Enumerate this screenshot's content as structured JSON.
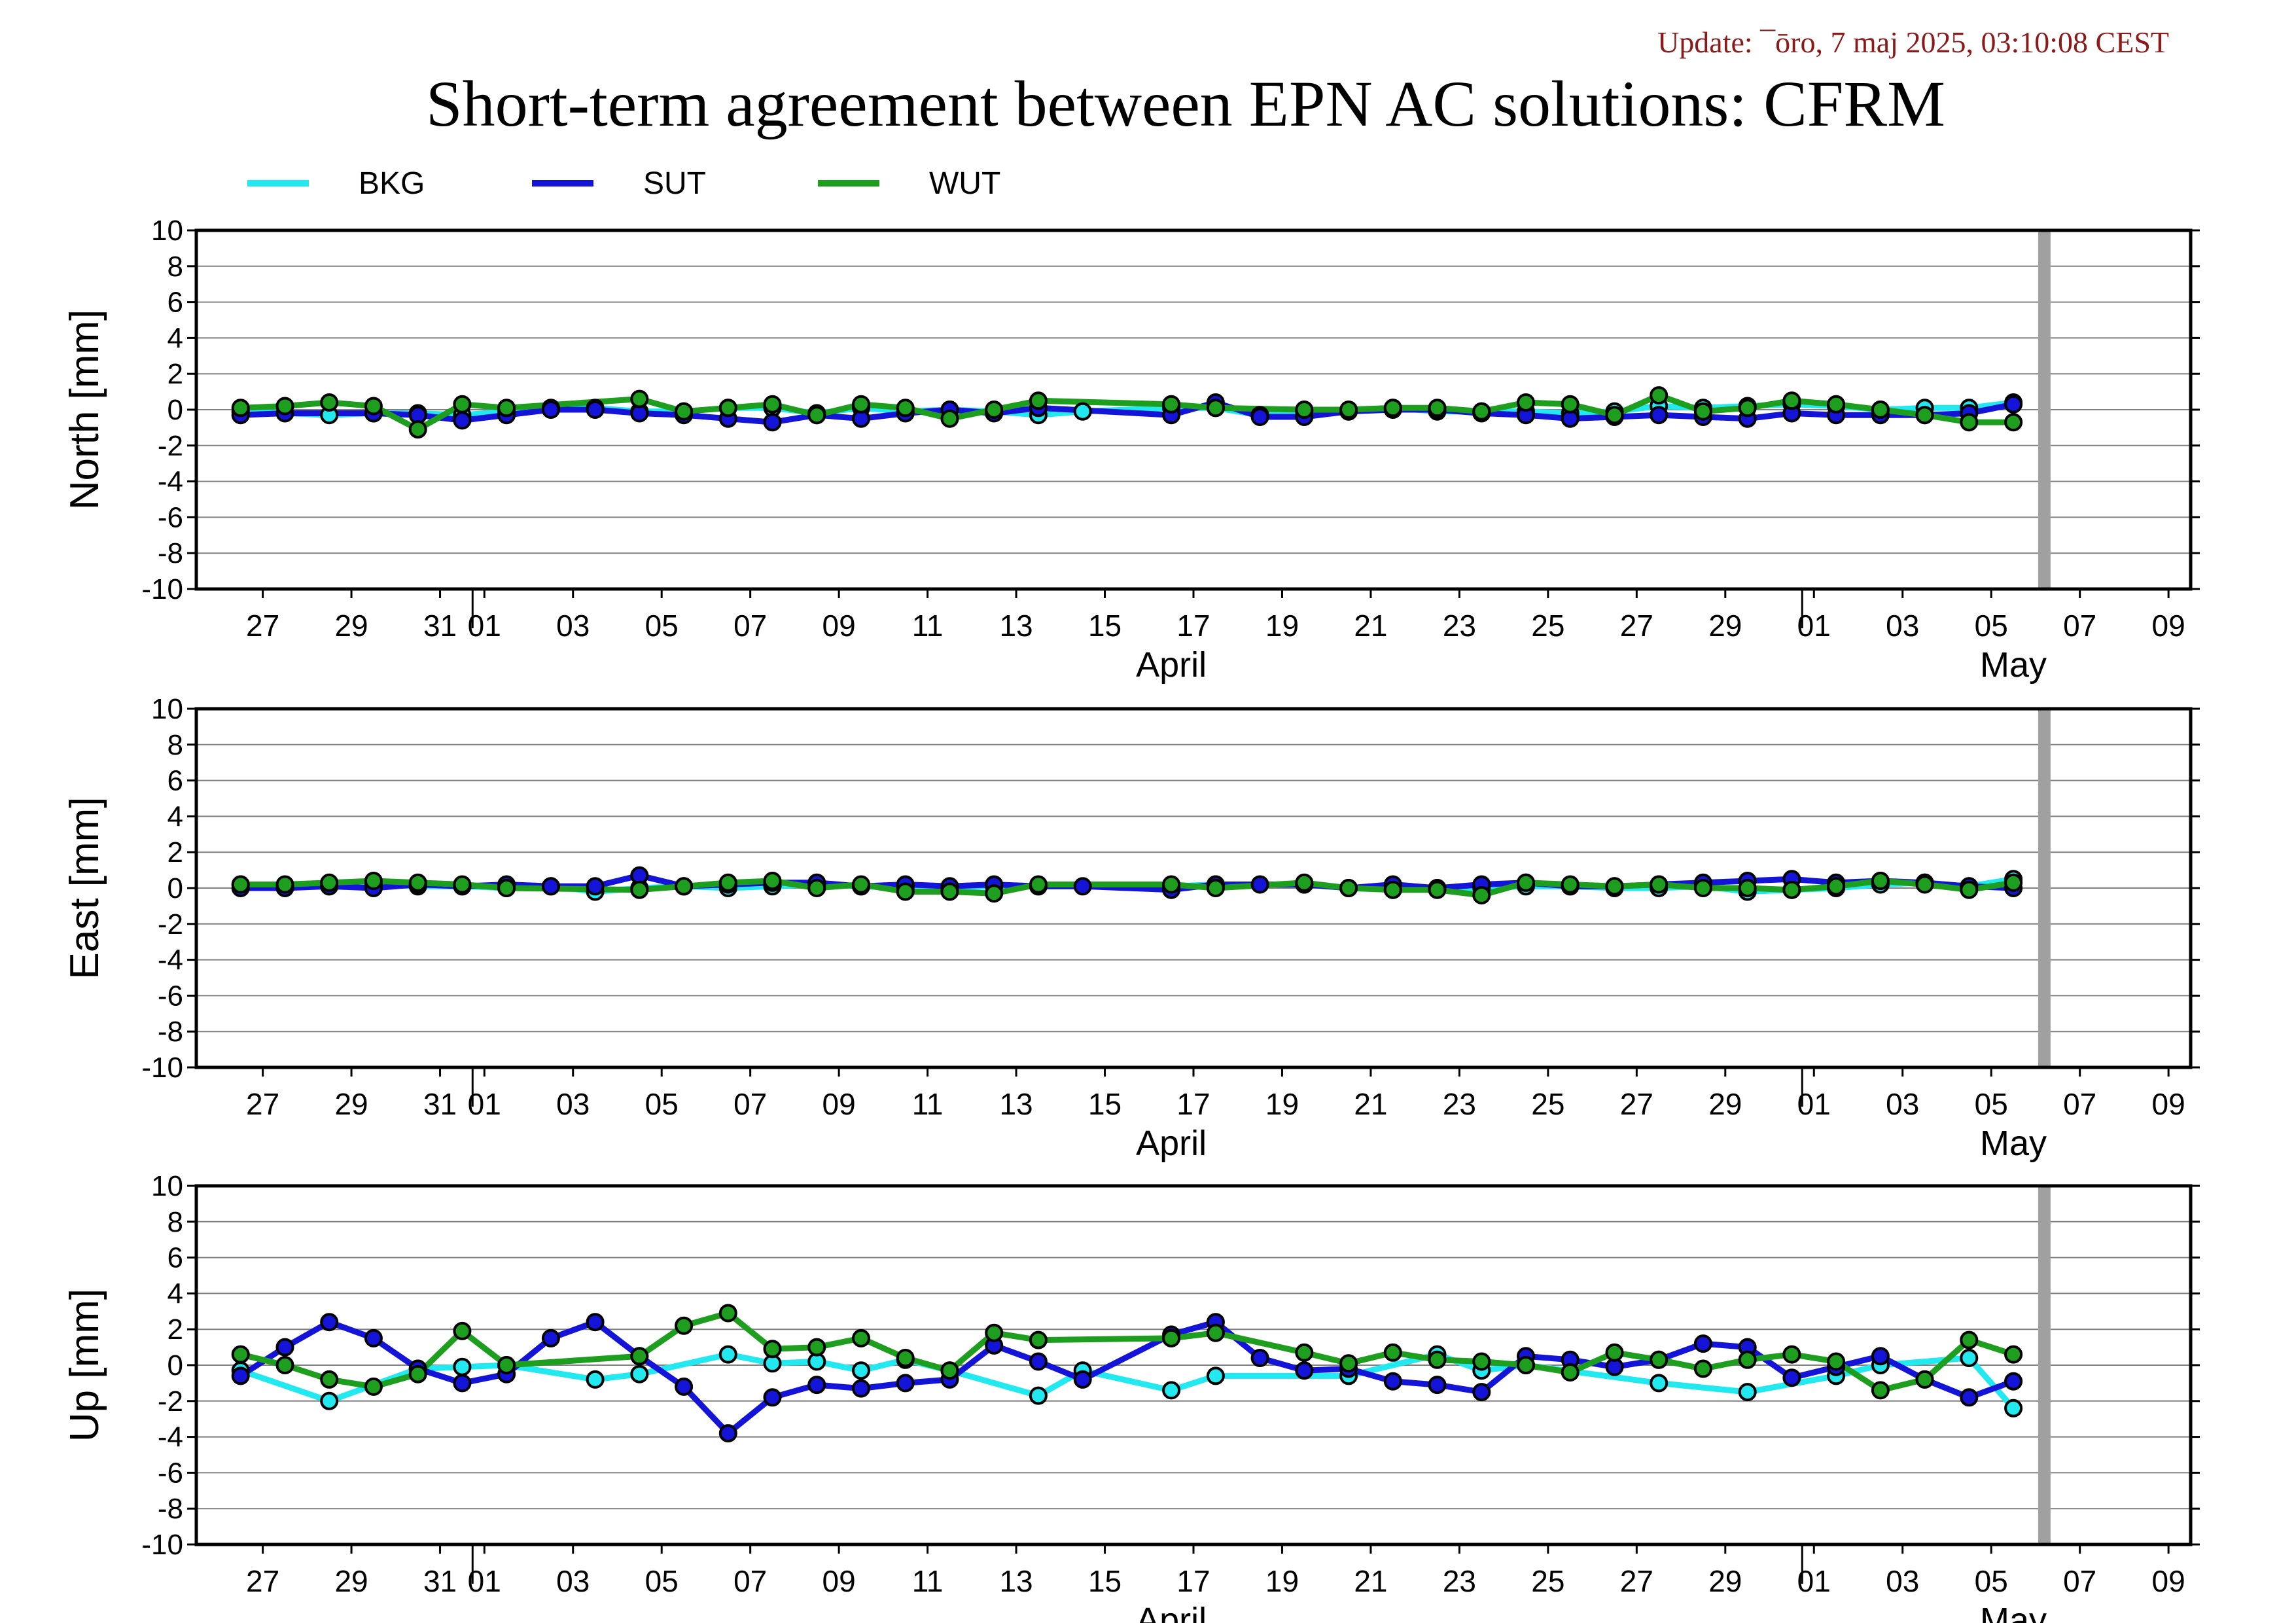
{
  "update_text": "Update: ¯ōro, 7 maj 2025, 03:10:08 CEST",
  "colors": {
    "update": "#8b1a1a",
    "BKG": "#22e8f0",
    "SUT": "#1414d8",
    "WUT": "#1e9e1e",
    "current_day_marker": "#a0a0a0",
    "grid": "#808080"
  },
  "chart_data": {
    "type": "line",
    "title": "Short-term agreement between EPN AC solutions: CFRM",
    "legend": {
      "placement": "top-left",
      "entries": [
        "BKG",
        "SUT",
        "WUT"
      ]
    },
    "x_axis": {
      "start": "2025-03-25T12:00",
      "end": "2025-05-09T12:00",
      "tick_labels": [
        "27",
        "29",
        "31",
        "01",
        "03",
        "05",
        "07",
        "09",
        "11",
        "13",
        "15",
        "17",
        "19",
        "21",
        "23",
        "25",
        "27",
        "29",
        "01",
        "03",
        "05",
        "07",
        "09"
      ],
      "tick_dates": [
        "2025-03-27",
        "2025-03-29",
        "2025-03-31",
        "2025-04-01",
        "2025-04-03",
        "2025-04-05",
        "2025-04-07",
        "2025-04-09",
        "2025-04-11",
        "2025-04-13",
        "2025-04-15",
        "2025-04-17",
        "2025-04-19",
        "2025-04-21",
        "2025-04-23",
        "2025-04-25",
        "2025-04-27",
        "2025-04-29",
        "2025-05-01",
        "2025-05-03",
        "2025-05-05",
        "2025-05-07",
        "2025-05-09"
      ],
      "month_labels": [
        {
          "label": "April",
          "center": "2025-04-16"
        },
        {
          "label": "May",
          "center": "2025-05-05"
        }
      ],
      "month_boundaries": [
        "2025-04-01",
        "2025-05-01"
      ]
    },
    "current_day_marker": "2025-05-06",
    "grid": true,
    "panels": [
      {
        "ylabel": "North [mm]",
        "ylim": [
          -10,
          10
        ],
        "yticks": [
          "10",
          "8",
          "6",
          "4",
          "2",
          "0",
          "-2",
          "-4",
          "-6",
          "-8",
          "-10"
        ],
        "series": [
          {
            "name": "BKG",
            "x": [
              "2025-03-26",
              "2025-03-28",
              "2025-03-29",
              "2025-03-30",
              "2025-03-31",
              "2025-04-01",
              "2025-04-02",
              "2025-04-03",
              "2025-04-04",
              "2025-04-05",
              "2025-04-06",
              "2025-04-07",
              "2025-04-08",
              "2025-04-09",
              "2025-04-10",
              "2025-04-11",
              "2025-04-12",
              "2025-04-13",
              "2025-04-14",
              "2025-04-16",
              "2025-04-17",
              "2025-04-18",
              "2025-04-19",
              "2025-04-20",
              "2025-04-21",
              "2025-04-22",
              "2025-04-23",
              "2025-04-24",
              "2025-04-25",
              "2025-04-26",
              "2025-04-27",
              "2025-04-28",
              "2025-04-29",
              "2025-04-30",
              "2025-05-01",
              "2025-05-02",
              "2025-05-03",
              "2025-05-04",
              "2025-05-05"
            ],
            "y": [
              -0.1,
              -0.3,
              -0.2,
              -0.2,
              -0.3,
              -0.1,
              0.1,
              0.1,
              -0.1,
              -0.1,
              0.1,
              0.1,
              -0.2,
              0.1,
              -0.1,
              0,
              -0.1,
              -0.3,
              -0.1,
              0.1,
              0.1,
              -0.3,
              -0.1,
              -0.1,
              0.1,
              -0.1,
              -0.1,
              -0.1,
              -0.2,
              -0.1,
              0.2,
              0.1,
              0.2,
              0.3,
              0.2,
              0,
              0.1,
              0.1,
              0.4
            ]
          },
          {
            "name": "SUT",
            "x": [
              "2025-03-26",
              "2025-03-27",
              "2025-03-29",
              "2025-03-30",
              "2025-03-31",
              "2025-04-01",
              "2025-04-02",
              "2025-04-03",
              "2025-04-04",
              "2025-04-05",
              "2025-04-06",
              "2025-04-07",
              "2025-04-08",
              "2025-04-09",
              "2025-04-10",
              "2025-04-11",
              "2025-04-12",
              "2025-04-13",
              "2025-04-16",
              "2025-04-17",
              "2025-04-18",
              "2025-04-19",
              "2025-04-20",
              "2025-04-21",
              "2025-04-22",
              "2025-04-23",
              "2025-04-24",
              "2025-04-25",
              "2025-04-26",
              "2025-04-27",
              "2025-04-28",
              "2025-04-29",
              "2025-04-30",
              "2025-05-01",
              "2025-05-02",
              "2025-05-03",
              "2025-05-04",
              "2025-05-05"
            ],
            "y": [
              -0.3,
              -0.2,
              -0.2,
              -0.3,
              -0.6,
              -0.3,
              0,
              0,
              -0.2,
              -0.3,
              -0.5,
              -0.7,
              -0.3,
              -0.5,
              -0.2,
              0,
              -0.2,
              0.1,
              -0.3,
              0.4,
              -0.4,
              -0.4,
              -0.1,
              0,
              0,
              -0.2,
              -0.3,
              -0.5,
              -0.4,
              -0.3,
              -0.4,
              -0.5,
              -0.2,
              -0.3,
              -0.3,
              -0.3,
              -0.2,
              0.3
            ]
          },
          {
            "name": "WUT",
            "x": [
              "2025-03-26",
              "2025-03-27",
              "2025-03-28",
              "2025-03-29",
              "2025-03-30",
              "2025-03-31",
              "2025-04-01",
              "2025-04-04",
              "2025-04-05",
              "2025-04-06",
              "2025-04-07",
              "2025-04-08",
              "2025-04-09",
              "2025-04-10",
              "2025-04-11",
              "2025-04-12",
              "2025-04-13",
              "2025-04-16",
              "2025-04-17",
              "2025-04-19",
              "2025-04-20",
              "2025-04-21",
              "2025-04-22",
              "2025-04-23",
              "2025-04-24",
              "2025-04-25",
              "2025-04-26",
              "2025-04-27",
              "2025-04-28",
              "2025-04-29",
              "2025-04-30",
              "2025-05-01",
              "2025-05-02",
              "2025-05-03",
              "2025-05-04",
              "2025-05-05"
            ],
            "y": [
              0.1,
              0.2,
              0.4,
              0.2,
              -1.1,
              0.3,
              0.1,
              0.6,
              -0.1,
              0.1,
              0.3,
              -0.3,
              0.3,
              0.1,
              -0.5,
              0,
              0.5,
              0.3,
              0.1,
              0,
              0,
              0.1,
              0.1,
              -0.1,
              0.4,
              0.3,
              -0.3,
              0.8,
              -0.1,
              0.1,
              0.5,
              0.3,
              0,
              -0.3,
              -0.7,
              -0.7
            ]
          }
        ]
      },
      {
        "ylabel": "East [mm]",
        "ylim": [
          -10,
          10
        ],
        "yticks": [
          "10",
          "8",
          "6",
          "4",
          "2",
          "0",
          "-2",
          "-4",
          "-6",
          "-8",
          "-10"
        ],
        "series": [
          {
            "name": "BKG",
            "x": [
              "2025-03-26",
              "2025-03-27",
              "2025-03-28",
              "2025-03-29",
              "2025-03-30",
              "2025-03-31",
              "2025-04-01",
              "2025-04-02",
              "2025-04-03",
              "2025-04-04",
              "2025-04-05",
              "2025-04-06",
              "2025-04-07",
              "2025-04-08",
              "2025-04-09",
              "2025-04-10",
              "2025-04-11",
              "2025-04-12",
              "2025-04-13",
              "2025-04-16",
              "2025-04-17",
              "2025-04-19",
              "2025-04-20",
              "2025-04-21",
              "2025-04-22",
              "2025-04-23",
              "2025-04-24",
              "2025-04-25",
              "2025-04-26",
              "2025-04-27",
              "2025-04-28",
              "2025-04-29",
              "2025-04-30",
              "2025-05-01",
              "2025-05-02",
              "2025-05-03",
              "2025-05-04",
              "2025-05-05"
            ],
            "y": [
              0.2,
              0.1,
              0.1,
              0.2,
              0.1,
              0.1,
              0,
              0.1,
              -0.2,
              0,
              0.1,
              0,
              0.1,
              0.2,
              0.1,
              0,
              0,
              0.1,
              0.1,
              0.1,
              0.2,
              0.2,
              0,
              -0.1,
              0,
              0,
              0.1,
              0.1,
              0,
              0,
              0.1,
              -0.2,
              -0.1,
              0,
              0.2,
              0.3,
              0.1,
              0.5
            ]
          },
          {
            "name": "SUT",
            "x": [
              "2025-03-26",
              "2025-03-27",
              "2025-03-28",
              "2025-03-29",
              "2025-03-30",
              "2025-03-31",
              "2025-04-01",
              "2025-04-02",
              "2025-04-03",
              "2025-04-04",
              "2025-04-05",
              "2025-04-06",
              "2025-04-07",
              "2025-04-08",
              "2025-04-09",
              "2025-04-10",
              "2025-04-11",
              "2025-04-12",
              "2025-04-13",
              "2025-04-14",
              "2025-04-16",
              "2025-04-17",
              "2025-04-18",
              "2025-04-19",
              "2025-04-20",
              "2025-04-21",
              "2025-04-22",
              "2025-04-23",
              "2025-04-24",
              "2025-04-25",
              "2025-04-26",
              "2025-04-27",
              "2025-04-28",
              "2025-04-29",
              "2025-04-30",
              "2025-05-01",
              "2025-05-02",
              "2025-05-03",
              "2025-05-04",
              "2025-05-05"
            ],
            "y": [
              0,
              0,
              0.1,
              0,
              0.2,
              0.1,
              0.2,
              0.1,
              0.1,
              0.7,
              0.1,
              0.2,
              0.3,
              0.3,
              0.1,
              0.2,
              0.1,
              0.2,
              0.1,
              0.1,
              -0.1,
              0.2,
              0.2,
              0.2,
              0,
              0.2,
              0,
              0.2,
              0.3,
              0.1,
              0.1,
              0.2,
              0.3,
              0.4,
              0.5,
              0.3,
              0.4,
              0.3,
              0.1,
              0
            ]
          },
          {
            "name": "WUT",
            "x": [
              "2025-03-26",
              "2025-03-27",
              "2025-03-28",
              "2025-03-29",
              "2025-03-30",
              "2025-03-31",
              "2025-04-01",
              "2025-04-04",
              "2025-04-05",
              "2025-04-06",
              "2025-04-07",
              "2025-04-08",
              "2025-04-09",
              "2025-04-10",
              "2025-04-11",
              "2025-04-12",
              "2025-04-13",
              "2025-04-16",
              "2025-04-17",
              "2025-04-19",
              "2025-04-20",
              "2025-04-21",
              "2025-04-22",
              "2025-04-23",
              "2025-04-24",
              "2025-04-25",
              "2025-04-26",
              "2025-04-27",
              "2025-04-28",
              "2025-04-29",
              "2025-04-30",
              "2025-05-01",
              "2025-05-02",
              "2025-05-03",
              "2025-05-04",
              "2025-05-05"
            ],
            "y": [
              0.2,
              0.2,
              0.3,
              0.4,
              0.3,
              0.2,
              0,
              -0.1,
              0.1,
              0.3,
              0.4,
              0,
              0.2,
              -0.2,
              -0.2,
              -0.3,
              0.2,
              0.2,
              0,
              0.3,
              0,
              -0.1,
              -0.1,
              -0.4,
              0.3,
              0.2,
              0.1,
              0.2,
              0,
              0,
              -0.1,
              0.1,
              0.4,
              0.2,
              -0.1,
              0.3
            ]
          }
        ]
      },
      {
        "ylabel": "Up [mm]",
        "ylim": [
          -10,
          10
        ],
        "yticks": [
          "10",
          "8",
          "6",
          "4",
          "2",
          "0",
          "-2",
          "-4",
          "-6",
          "-8",
          "-10"
        ],
        "series": [
          {
            "name": "BKG",
            "x": [
              "2025-03-26",
              "2025-03-28",
              "2025-03-30",
              "2025-03-31",
              "2025-04-01",
              "2025-04-03",
              "2025-04-04",
              "2025-04-06",
              "2025-04-07",
              "2025-04-08",
              "2025-04-09",
              "2025-04-10",
              "2025-04-11",
              "2025-04-13",
              "2025-04-14",
              "2025-04-16",
              "2025-04-17",
              "2025-04-20",
              "2025-04-22",
              "2025-04-23",
              "2025-04-24",
              "2025-04-27",
              "2025-04-29",
              "2025-05-01",
              "2025-05-02",
              "2025-05-04",
              "2025-05-05"
            ],
            "y": [
              -0.3,
              -2,
              -0.2,
              -0.1,
              0,
              -0.8,
              -0.5,
              0.6,
              0.1,
              0.2,
              -0.3,
              0.3,
              -0.3,
              -1.7,
              -0.3,
              -1.4,
              -0.6,
              -0.6,
              0.6,
              -0.3,
              0,
              -1,
              -1.5,
              -0.6,
              0,
              0.4,
              -2.4
            ]
          },
          {
            "name": "SUT",
            "x": [
              "2025-03-26",
              "2025-03-27",
              "2025-03-28",
              "2025-03-29",
              "2025-03-30",
              "2025-03-31",
              "2025-04-01",
              "2025-04-02",
              "2025-04-03",
              "2025-04-04",
              "2025-04-05",
              "2025-04-06",
              "2025-04-07",
              "2025-04-08",
              "2025-04-09",
              "2025-04-10",
              "2025-04-11",
              "2025-04-12",
              "2025-04-13",
              "2025-04-14",
              "2025-04-16",
              "2025-04-17",
              "2025-04-18",
              "2025-04-19",
              "2025-04-20",
              "2025-04-21",
              "2025-04-22",
              "2025-04-23",
              "2025-04-24",
              "2025-04-25",
              "2025-04-26",
              "2025-04-27",
              "2025-04-28",
              "2025-04-29",
              "2025-04-30",
              "2025-05-01",
              "2025-05-02",
              "2025-05-03",
              "2025-05-04",
              "2025-05-05"
            ],
            "y": [
              -0.6,
              1,
              2.4,
              1.5,
              -0.2,
              -1,
              -0.5,
              1.5,
              2.4,
              0.5,
              -1.2,
              -3.8,
              -1.8,
              -1.1,
              -1.3,
              -1,
              -0.8,
              1.1,
              0.2,
              -0.8,
              1.7,
              2.4,
              0.4,
              -0.3,
              -0.2,
              -0.9,
              -1.1,
              -1.5,
              0.5,
              0.3,
              -0.1,
              0.3,
              1.2,
              1,
              -0.7,
              -0.1,
              0.5,
              -0.8,
              -1.8,
              -0.9
            ]
          },
          {
            "name": "WUT",
            "x": [
              "2025-03-26",
              "2025-03-27",
              "2025-03-28",
              "2025-03-29",
              "2025-03-30",
              "2025-03-31",
              "2025-04-01",
              "2025-04-04",
              "2025-04-05",
              "2025-04-06",
              "2025-04-07",
              "2025-04-08",
              "2025-04-09",
              "2025-04-10",
              "2025-04-11",
              "2025-04-12",
              "2025-04-13",
              "2025-04-16",
              "2025-04-17",
              "2025-04-19",
              "2025-04-20",
              "2025-04-21",
              "2025-04-22",
              "2025-04-23",
              "2025-04-24",
              "2025-04-25",
              "2025-04-26",
              "2025-04-27",
              "2025-04-28",
              "2025-04-29",
              "2025-04-30",
              "2025-05-01",
              "2025-05-02",
              "2025-05-03",
              "2025-05-04",
              "2025-05-05"
            ],
            "y": [
              0.6,
              0,
              -0.8,
              -1.2,
              -0.5,
              1.9,
              0,
              0.5,
              2.2,
              2.9,
              0.9,
              1,
              1.5,
              0.4,
              -0.3,
              1.8,
              1.4,
              1.5,
              1.8,
              0.7,
              0.1,
              0.7,
              0.3,
              0.2,
              0,
              -0.4,
              0.7,
              0.3,
              -0.2,
              0.3,
              0.6,
              0.2,
              -1.4,
              -0.8,
              1.4,
              0.6
            ]
          }
        ]
      }
    ]
  }
}
